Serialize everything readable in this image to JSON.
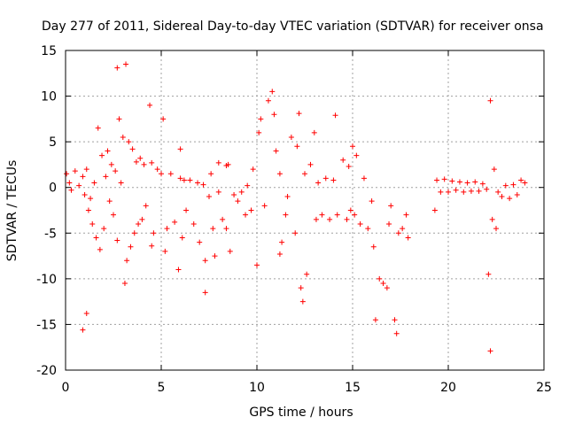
{
  "chart_data": {
    "type": "scatter",
    "title": "Day 277 of 2011, Sidereal Day-to-day VTEC variation (SDTVAR) for receiver onsa",
    "xlabel": "GPS time / hours",
    "ylabel": "SDTVAR / TECUs",
    "xlim": [
      0,
      25
    ],
    "ylim": [
      -20,
      15
    ],
    "xticks": [
      0,
      5,
      10,
      15,
      20,
      25
    ],
    "yticks": [
      -20,
      -15,
      -10,
      -5,
      0,
      5,
      10,
      15
    ],
    "grid": true,
    "marker": "+",
    "color": "#ff0000",
    "series": [
      {
        "name": "SDTVAR",
        "points": [
          [
            0.05,
            1.5
          ],
          [
            0.2,
            0.5
          ],
          [
            0.3,
            -0.3
          ],
          [
            0.5,
            1.8
          ],
          [
            0.7,
            0.2
          ],
          [
            0.9,
            1.2
          ],
          [
            1.0,
            -0.8
          ],
          [
            1.1,
            2.0
          ],
          [
            1.2,
            -2.5
          ],
          [
            1.3,
            -1.2
          ],
          [
            1.4,
            -4.0
          ],
          [
            1.5,
            0.5
          ],
          [
            1.6,
            -5.5
          ],
          [
            1.7,
            6.5
          ],
          [
            1.8,
            -6.8
          ],
          [
            1.9,
            3.5
          ],
          [
            2.0,
            -4.5
          ],
          [
            2.1,
            1.2
          ],
          [
            2.2,
            4.0
          ],
          [
            2.3,
            -1.5
          ],
          [
            2.4,
            2.5
          ],
          [
            2.5,
            -3.0
          ],
          [
            2.6,
            1.8
          ],
          [
            2.7,
            -5.8
          ],
          [
            2.8,
            7.5
          ],
          [
            2.9,
            0.5
          ],
          [
            3.0,
            5.5
          ],
          [
            3.1,
            -10.5
          ],
          [
            3.15,
            13.5
          ],
          [
            3.2,
            -8.0
          ],
          [
            3.3,
            5.0
          ],
          [
            3.4,
            -6.5
          ],
          [
            3.5,
            4.2
          ],
          [
            3.6,
            -5.0
          ],
          [
            3.7,
            2.8
          ],
          [
            3.8,
            -4.0
          ],
          [
            3.9,
            3.2
          ],
          [
            4.0,
            -3.5
          ],
          [
            4.1,
            2.5
          ],
          [
            4.2,
            -2.0
          ],
          [
            4.5,
            2.7
          ],
          [
            4.6,
            -5.0
          ],
          [
            4.8,
            2.0
          ],
          [
            5.0,
            1.5
          ],
          [
            5.1,
            7.5
          ],
          [
            5.2,
            -7.0
          ],
          [
            5.3,
            -4.5
          ],
          [
            5.5,
            1.5
          ],
          [
            5.7,
            -3.8
          ],
          [
            5.9,
            -9.0
          ],
          [
            6.0,
            1.0
          ],
          [
            6.1,
            -5.5
          ],
          [
            6.2,
            0.8
          ],
          [
            6.3,
            -2.5
          ],
          [
            6.5,
            0.8
          ],
          [
            6.7,
            -4.0
          ],
          [
            6.9,
            0.5
          ],
          [
            7.0,
            -6.0
          ],
          [
            7.2,
            0.3
          ],
          [
            7.3,
            -8.0
          ],
          [
            7.5,
            -1.0
          ],
          [
            7.6,
            1.5
          ],
          [
            7.7,
            -4.5
          ],
          [
            7.8,
            -7.5
          ],
          [
            8.0,
            -0.5
          ],
          [
            8.2,
            -3.5
          ],
          [
            8.4,
            -4.5
          ],
          [
            8.5,
            2.5
          ],
          [
            8.6,
            -7.0
          ],
          [
            8.8,
            -0.8
          ],
          [
            9.0,
            -1.5
          ],
          [
            9.2,
            -0.5
          ],
          [
            9.4,
            -3.0
          ],
          [
            9.5,
            0.2
          ],
          [
            9.7,
            -2.5
          ],
          [
            9.8,
            2.0
          ],
          [
            10.0,
            -8.5
          ],
          [
            10.1,
            6.0
          ],
          [
            10.2,
            7.5
          ],
          [
            10.4,
            -2.0
          ],
          [
            10.6,
            9.5
          ],
          [
            10.8,
            10.5
          ],
          [
            10.9,
            8.0
          ],
          [
            11.0,
            4.0
          ],
          [
            11.2,
            1.5
          ],
          [
            11.3,
            -6.0
          ],
          [
            11.5,
            -3.0
          ],
          [
            11.6,
            -1.0
          ],
          [
            11.8,
            5.5
          ],
          [
            12.0,
            -5.0
          ],
          [
            12.1,
            4.5
          ],
          [
            12.3,
            -11.0
          ],
          [
            12.4,
            -12.5
          ],
          [
            12.5,
            1.5
          ],
          [
            12.6,
            -9.5
          ],
          [
            12.8,
            2.5
          ],
          [
            13.0,
            6.0
          ],
          [
            13.1,
            -3.5
          ],
          [
            13.2,
            0.5
          ],
          [
            13.4,
            -3.0
          ],
          [
            13.6,
            1.0
          ],
          [
            13.8,
            -3.5
          ],
          [
            14.0,
            0.8
          ],
          [
            14.2,
            -3.0
          ],
          [
            14.5,
            3.0
          ],
          [
            14.7,
            -3.5
          ],
          [
            14.9,
            -2.5
          ],
          [
            15.0,
            4.5
          ],
          [
            15.1,
            -3.0
          ],
          [
            15.2,
            3.5
          ],
          [
            15.4,
            -4.0
          ],
          [
            15.6,
            1.0
          ],
          [
            15.8,
            -4.5
          ],
          [
            16.0,
            -1.5
          ],
          [
            16.1,
            -6.5
          ],
          [
            16.2,
            -14.5
          ],
          [
            16.4,
            -10.0
          ],
          [
            16.6,
            -10.5
          ],
          [
            16.8,
            -11.0
          ],
          [
            16.9,
            -4.0
          ],
          [
            17.0,
            -2.0
          ],
          [
            17.2,
            -14.5
          ],
          [
            17.3,
            -16.0
          ],
          [
            17.4,
            -5.0
          ],
          [
            17.6,
            -4.5
          ],
          [
            17.8,
            -3.0
          ],
          [
            17.9,
            -5.5
          ],
          [
            19.3,
            -2.5
          ],
          [
            19.4,
            0.8
          ],
          [
            19.6,
            -0.5
          ],
          [
            19.8,
            0.9
          ],
          [
            20.0,
            -0.5
          ],
          [
            20.2,
            0.7
          ],
          [
            20.4,
            -0.3
          ],
          [
            20.6,
            0.6
          ],
          [
            20.8,
            -0.5
          ],
          [
            21.0,
            0.5
          ],
          [
            21.2,
            -0.4
          ],
          [
            21.4,
            0.6
          ],
          [
            21.6,
            -0.4
          ],
          [
            21.8,
            0.4
          ],
          [
            22.0,
            -0.2
          ],
          [
            22.1,
            -9.5
          ],
          [
            22.2,
            9.5
          ],
          [
            22.3,
            -3.5
          ],
          [
            22.4,
            2.0
          ],
          [
            22.5,
            -4.5
          ],
          [
            22.6,
            -0.5
          ],
          [
            22.8,
            -1.0
          ],
          [
            23.0,
            0.2
          ],
          [
            23.2,
            -1.2
          ],
          [
            23.4,
            0.3
          ],
          [
            23.6,
            -0.8
          ],
          [
            23.8,
            0.8
          ],
          [
            24.0,
            0.5
          ],
          [
            0.9,
            -15.6
          ],
          [
            1.1,
            -13.8
          ],
          [
            2.7,
            13.1
          ],
          [
            4.4,
            9.0
          ],
          [
            4.5,
            -6.4
          ],
          [
            6.0,
            4.2
          ],
          [
            7.3,
            -11.5
          ],
          [
            8.0,
            2.7
          ],
          [
            8.4,
            2.4
          ],
          [
            12.2,
            8.1
          ],
          [
            14.1,
            7.9
          ],
          [
            14.8,
            2.3
          ],
          [
            11.2,
            -7.3
          ],
          [
            22.2,
            -17.9
          ]
        ]
      }
    ]
  }
}
